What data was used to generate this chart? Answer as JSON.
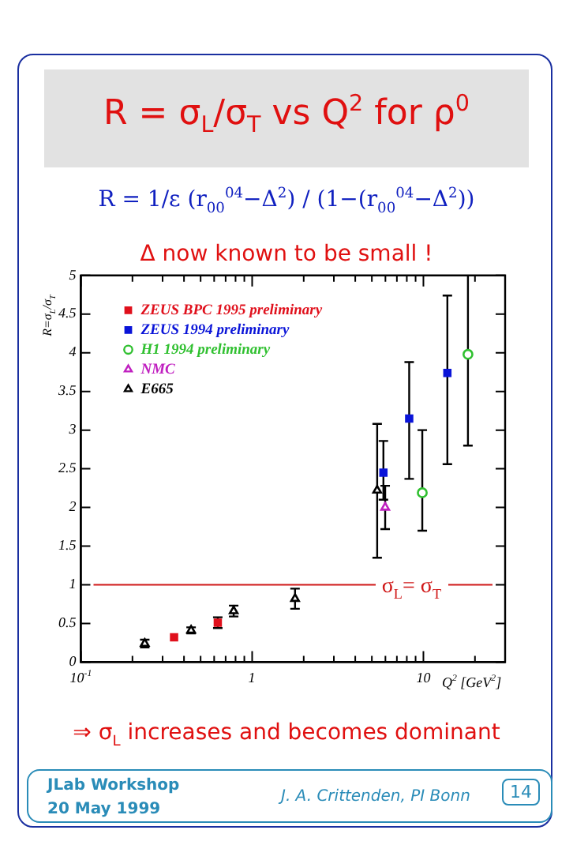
{
  "chart_data": {
    "type": "scatter",
    "title": "R = σ$_{L}$/σ$_{T}$ vs Q$^{2}$ for ρ$^{0}$",
    "subtitle": "R = 1/ε (r$_{00}$$^{04}$−Δ$^{2}$) / (1−(r$_{00}$$^{04}$−Δ$^{2}$))",
    "xlabel": "Q$^{2}$ [GeV$^{2}$]",
    "ylabel": "R=σ$_{L}$/σ$_{T}$",
    "annotations": [
      "Δ now known to be small !",
      "⇒ σ$_{L}$ increases and becomes dominant",
      "JLab Workshop",
      "20 May 1999",
      "J. A. Crittenden, PI Bonn",
      "14"
    ],
    "series": [
      {
        "name": "ZEUS BPC 1995 preliminary",
        "color": "#e0101c",
        "marker": "square",
        "x": [
          0.35,
          0.63
        ],
        "values": [
          0.32,
          0.51
        ],
        "errors": [
          null,
          [
            0.44,
            0.58
          ]
        ]
      },
      {
        "name": "ZEUS 1994 preliminary",
        "color": "#0a14d8",
        "marker": "square",
        "x": [
          5.84,
          8.26,
          13.8
        ],
        "values": [
          2.45,
          3.15,
          3.74
        ],
        "errors": [
          [
            2.1,
            2.86
          ],
          [
            2.37,
            3.88
          ],
          [
            2.56,
            4.74
          ]
        ]
      },
      {
        "name": "H1 1994 preliminary",
        "color": "#30c030",
        "marker": "circle",
        "x": [
          9.85,
          18.2
        ],
        "values": [
          2.19,
          3.98
        ],
        "errors": [
          [
            1.7,
            3.0
          ],
          [
            2.8,
            5.0
          ]
        ]
      },
      {
        "name": "NMC",
        "color": "#c020c0",
        "marker": "triangle",
        "x": [
          5.98
        ],
        "values": [
          2.0
        ],
        "errors": [
          [
            1.72,
            2.28
          ]
        ]
      },
      {
        "name": "E665",
        "color": "#000000",
        "marker": "triangle",
        "x": [
          0.236,
          0.44,
          0.78,
          1.78,
          5.37
        ],
        "values": [
          0.24,
          0.41,
          0.66,
          0.82,
          2.22
        ],
        "errors": [
          [
            0.19,
            0.29
          ],
          [
            0.37,
            0.45
          ],
          [
            0.59,
            0.73
          ],
          [
            0.69,
            0.95
          ],
          [
            1.35,
            3.08
          ]
        ]
      }
    ],
    "ref_lines": [
      {
        "axis": "y",
        "value": 1,
        "label": "σ$_{L}$= σ$_{T}$",
        "color": "#d01818"
      }
    ],
    "log": "x",
    "xlim": [
      0.1,
      30
    ],
    "ylim": [
      0,
      5
    ],
    "xticks": [
      {
        "value": 0.1,
        "label": "10$^{-1}$"
      },
      {
        "value": 0.2,
        "label": null
      },
      {
        "value": 0.3,
        "label": null
      },
      {
        "value": 0.4,
        "label": null
      },
      {
        "value": 0.5,
        "label": null
      },
      {
        "value": 0.6,
        "label": null
      },
      {
        "value": 0.7,
        "label": null
      },
      {
        "value": 0.8,
        "label": null
      },
      {
        "value": 0.9,
        "label": null
      },
      1,
      {
        "value": 2,
        "label": null
      },
      {
        "value": 3,
        "label": null
      },
      {
        "value": 4,
        "label": null
      },
      {
        "value": 5,
        "label": null
      },
      {
        "value": 6,
        "label": null
      },
      {
        "value": 7,
        "label": null
      },
      {
        "value": 8,
        "label": null
      },
      {
        "value": 9,
        "label": null
      },
      10,
      {
        "value": 20,
        "label": null
      }
    ],
    "yticks": [
      0,
      0.5,
      1,
      1.5,
      2,
      2.5,
      3,
      3.5,
      4,
      4.5,
      5
    ],
    "grid": false,
    "legend": "top left"
  }
}
